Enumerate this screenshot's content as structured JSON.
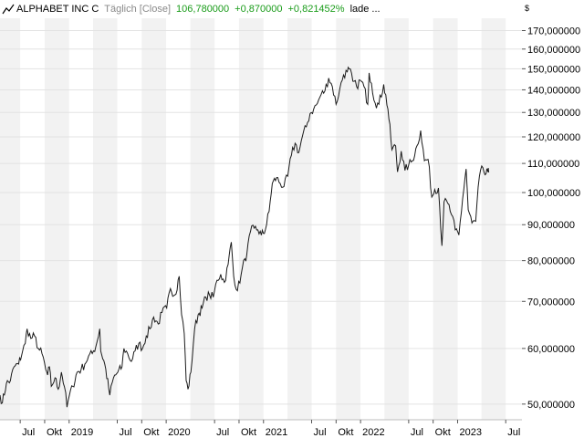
{
  "header": {
    "name": "ALPHABET INC C",
    "mode": "Täglich [Close]",
    "last": "106,780000",
    "change": "+0,870000",
    "change_pct": "+0,821452%",
    "status": "lade ..."
  },
  "colors": {
    "line": "#1a1a1a",
    "band": "#f2f2f2",
    "grid": "#e3e3e3",
    "positive": "#1a9c1a"
  },
  "icons": {
    "header": "chart-trend-icon"
  },
  "chart_data": {
    "type": "line",
    "scale": "log",
    "currency_label": "$",
    "ylim": [
      47.5,
      177
    ],
    "xlim": [
      "2018-04-16",
      "2023-08-31"
    ],
    "y_ticks": [
      {
        "value": 50,
        "label": "50,000000"
      },
      {
        "value": 60,
        "label": "60,000000"
      },
      {
        "value": 70,
        "label": "70,000000"
      },
      {
        "value": 80,
        "label": "80,000000"
      },
      {
        "value": 90,
        "label": "90,000000"
      },
      {
        "value": 100,
        "label": "100,000000"
      },
      {
        "value": 110,
        "label": "110,000000"
      },
      {
        "value": 120,
        "label": "120,000000"
      },
      {
        "value": 130,
        "label": "130,000000"
      },
      {
        "value": 140,
        "label": "140,000000"
      },
      {
        "value": 150,
        "label": "150,000000"
      },
      {
        "value": 160,
        "label": "160,000000"
      },
      {
        "value": 170,
        "label": "170,000000"
      }
    ],
    "x_ticks": [
      {
        "date": "2018-07-01",
        "label": "Jul"
      },
      {
        "date": "2018-10-01",
        "label": "Okt"
      },
      {
        "date": "2019-01-01",
        "label": "2019"
      },
      {
        "date": "2019-07-01",
        "label": "Jul"
      },
      {
        "date": "2019-10-01",
        "label": "Okt"
      },
      {
        "date": "2020-01-01",
        "label": "2020"
      },
      {
        "date": "2020-07-01",
        "label": "Jul"
      },
      {
        "date": "2020-10-01",
        "label": "Okt"
      },
      {
        "date": "2021-01-01",
        "label": "2021"
      },
      {
        "date": "2021-07-01",
        "label": "Jul"
      },
      {
        "date": "2021-10-01",
        "label": "Okt"
      },
      {
        "date": "2022-01-01",
        "label": "2022"
      },
      {
        "date": "2022-07-01",
        "label": "Jul"
      },
      {
        "date": "2022-10-01",
        "label": "Okt"
      },
      {
        "date": "2023-01-01",
        "label": "2023"
      },
      {
        "date": "2023-07-01",
        "label": "Jul"
      }
    ],
    "shaded_bands": [
      [
        "2018-04-01",
        "2018-07-01"
      ],
      [
        "2018-10-01",
        "2019-01-01"
      ],
      [
        "2019-04-01",
        "2019-07-01"
      ],
      [
        "2019-10-01",
        "2020-01-01"
      ],
      [
        "2020-04-01",
        "2020-07-01"
      ],
      [
        "2020-10-01",
        "2021-01-01"
      ],
      [
        "2021-04-01",
        "2021-07-01"
      ],
      [
        "2021-10-01",
        "2022-01-01"
      ],
      [
        "2022-04-01",
        "2022-07-01"
      ],
      [
        "2022-10-01",
        "2023-01-01"
      ],
      [
        "2023-04-01",
        "2023-07-01"
      ]
    ],
    "series": [
      {
        "values": [
          [
            "2018-04-16",
            51.5
          ],
          [
            "2018-04-25",
            50.2
          ],
          [
            "2018-05-10",
            53.5
          ],
          [
            "2018-05-25",
            54.0
          ],
          [
            "2018-06-08",
            56.5
          ],
          [
            "2018-06-25",
            57.0
          ],
          [
            "2018-07-10",
            59.5
          ],
          [
            "2018-07-20",
            61.0
          ],
          [
            "2018-07-27",
            64.0
          ],
          [
            "2018-08-10",
            62.0
          ],
          [
            "2018-08-24",
            62.5
          ],
          [
            "2018-09-07",
            60.0
          ],
          [
            "2018-09-21",
            59.0
          ],
          [
            "2018-10-05",
            56.0
          ],
          [
            "2018-10-12",
            55.0
          ],
          [
            "2018-10-19",
            56.5
          ],
          [
            "2018-10-26",
            53.0
          ],
          [
            "2018-11-09",
            54.5
          ],
          [
            "2018-11-21",
            52.5
          ],
          [
            "2018-12-03",
            55.5
          ],
          [
            "2018-12-14",
            53.0
          ],
          [
            "2018-12-24",
            49.5
          ],
          [
            "2019-01-02",
            51.5
          ],
          [
            "2019-01-15",
            53.0
          ],
          [
            "2019-01-31",
            55.5
          ],
          [
            "2019-02-15",
            56.0
          ],
          [
            "2019-03-01",
            57.0
          ],
          [
            "2019-03-15",
            58.5
          ],
          [
            "2019-03-29",
            59.0
          ],
          [
            "2019-04-12",
            60.5
          ],
          [
            "2019-04-26",
            64.0
          ],
          [
            "2019-04-30",
            59.5
          ],
          [
            "2019-05-15",
            57.0
          ],
          [
            "2019-06-03",
            51.5
          ],
          [
            "2019-06-17",
            54.5
          ],
          [
            "2019-07-03",
            55.5
          ],
          [
            "2019-07-19",
            56.5
          ],
          [
            "2019-07-26",
            60.0
          ],
          [
            "2019-08-09",
            59.0
          ],
          [
            "2019-08-23",
            57.5
          ],
          [
            "2019-09-06",
            59.5
          ],
          [
            "2019-09-20",
            61.0
          ],
          [
            "2019-10-04",
            60.0
          ],
          [
            "2019-10-18",
            62.5
          ],
          [
            "2019-11-01",
            64.0
          ],
          [
            "2019-11-15",
            66.5
          ],
          [
            "2019-12-02",
            65.0
          ],
          [
            "2019-12-16",
            67.5
          ],
          [
            "2020-01-03",
            68.5
          ],
          [
            "2020-01-17",
            73.0
          ],
          [
            "2020-02-03",
            71.5
          ],
          [
            "2020-02-19",
            76.0
          ],
          [
            "2020-02-28",
            67.0
          ],
          [
            "2020-03-09",
            63.0
          ],
          [
            "2020-03-16",
            54.0
          ],
          [
            "2020-03-23",
            52.5
          ],
          [
            "2020-04-03",
            55.5
          ],
          [
            "2020-04-17",
            64.0
          ],
          [
            "2020-04-30",
            67.0
          ],
          [
            "2020-05-15",
            68.5
          ],
          [
            "2020-05-29",
            71.0
          ],
          [
            "2020-06-12",
            71.5
          ],
          [
            "2020-06-26",
            71.0
          ],
          [
            "2020-07-10",
            75.0
          ],
          [
            "2020-07-24",
            76.5
          ],
          [
            "2020-08-07",
            74.5
          ],
          [
            "2020-08-21",
            79.0
          ],
          [
            "2020-09-02",
            85.0
          ],
          [
            "2020-09-11",
            76.0
          ],
          [
            "2020-09-25",
            72.5
          ],
          [
            "2020-10-09",
            76.5
          ],
          [
            "2020-10-23",
            80.5
          ],
          [
            "2020-10-30",
            81.5
          ],
          [
            "2020-11-13",
            88.0
          ],
          [
            "2020-11-27",
            89.0
          ],
          [
            "2020-12-11",
            88.5
          ],
          [
            "2020-12-24",
            87.0
          ],
          [
            "2021-01-08",
            88.5
          ],
          [
            "2021-01-22",
            94.0
          ],
          [
            "2021-02-03",
            103.0
          ],
          [
            "2021-02-19",
            105.0
          ],
          [
            "2021-03-05",
            103.0
          ],
          [
            "2021-03-19",
            102.0
          ],
          [
            "2021-04-02",
            105.5
          ],
          [
            "2021-04-16",
            113.0
          ],
          [
            "2021-04-30",
            117.5
          ],
          [
            "2021-05-14",
            114.0
          ],
          [
            "2021-05-28",
            120.5
          ],
          [
            "2021-06-11",
            124.0
          ],
          [
            "2021-06-25",
            129.5
          ],
          [
            "2021-07-09",
            131.5
          ],
          [
            "2021-07-23",
            134.0
          ],
          [
            "2021-08-06",
            138.0
          ],
          [
            "2021-08-20",
            139.5
          ],
          [
            "2021-09-03",
            145.5
          ],
          [
            "2021-09-17",
            141.5
          ],
          [
            "2021-10-01",
            133.5
          ],
          [
            "2021-10-15",
            140.5
          ],
          [
            "2021-10-29",
            147.0
          ],
          [
            "2021-11-12",
            148.5
          ],
          [
            "2021-11-19",
            150.0
          ],
          [
            "2021-12-03",
            144.0
          ],
          [
            "2021-12-17",
            141.5
          ],
          [
            "2021-12-31",
            144.5
          ],
          [
            "2022-01-14",
            141.5
          ],
          [
            "2022-01-28",
            133.5
          ],
          [
            "2022-02-02",
            148.0
          ],
          [
            "2022-02-11",
            143.0
          ],
          [
            "2022-02-25",
            134.0
          ],
          [
            "2022-03-11",
            133.5
          ],
          [
            "2022-03-29",
            142.5
          ],
          [
            "2022-04-14",
            131.5
          ],
          [
            "2022-04-29",
            115.0
          ],
          [
            "2022-05-13",
            116.5
          ],
          [
            "2022-05-20",
            107.0
          ],
          [
            "2022-06-03",
            114.5
          ],
          [
            "2022-06-17",
            107.5
          ],
          [
            "2022-07-01",
            109.5
          ],
          [
            "2022-07-15",
            111.0
          ],
          [
            "2022-08-01",
            116.5
          ],
          [
            "2022-08-15",
            122.5
          ],
          [
            "2022-08-29",
            111.0
          ],
          [
            "2022-09-12",
            111.5
          ],
          [
            "2022-09-26",
            98.5
          ],
          [
            "2022-10-07",
            101.0
          ],
          [
            "2022-10-21",
            101.5
          ],
          [
            "2022-11-03",
            84.0
          ],
          [
            "2022-11-11",
            97.0
          ],
          [
            "2022-11-25",
            96.5
          ],
          [
            "2022-12-09",
            93.0
          ],
          [
            "2022-12-23",
            88.5
          ],
          [
            "2023-01-06",
            87.0
          ],
          [
            "2023-01-20",
            98.0
          ],
          [
            "2023-02-02",
            108.0
          ],
          [
            "2023-02-10",
            94.5
          ],
          [
            "2023-02-24",
            90.5
          ],
          [
            "2023-03-10",
            91.0
          ],
          [
            "2023-03-24",
            105.5
          ],
          [
            "2023-04-06",
            108.5
          ],
          [
            "2023-04-14",
            106.0
          ],
          [
            "2023-04-25",
            107.0
          ],
          [
            "2023-04-28",
            106.78
          ]
        ]
      }
    ]
  }
}
